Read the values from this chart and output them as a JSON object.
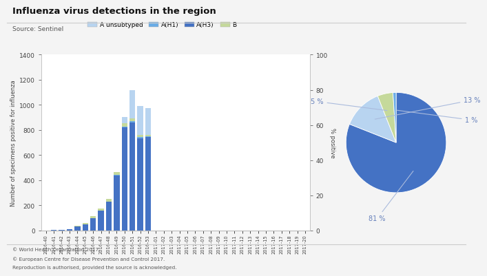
{
  "title": "Influenza virus detections in the region",
  "source": "Source: Sentinel",
  "weeks": [
    "2016-40",
    "2016-41",
    "2016-42",
    "2016-43",
    "2016-44",
    "2016-45",
    "2016-46",
    "2016-47",
    "2016-48",
    "2016-49",
    "2016-50",
    "2016-51",
    "2016-52",
    "2016-53",
    "2017-01",
    "2017-02",
    "2017-03",
    "2017-04",
    "2017-05",
    "2017-06",
    "2017-07",
    "2017-08",
    "2017-09",
    "2017-10",
    "2017-11",
    "2017-12",
    "2017-13",
    "2017-14",
    "2017-15",
    "2017-16",
    "2017-17",
    "2017-18",
    "2017-19",
    "2017-20"
  ],
  "A_unsubtyped": [
    0,
    0,
    0,
    0,
    0,
    0,
    0,
    0,
    0,
    0,
    50,
    225,
    230,
    215,
    0,
    0,
    0,
    0,
    0,
    0,
    0,
    0,
    0,
    0,
    0,
    0,
    0,
    0,
    0,
    0,
    0,
    0,
    0,
    0
  ],
  "A_H1": [
    0,
    0,
    0,
    0,
    0,
    0,
    0,
    0,
    0,
    5,
    5,
    10,
    10,
    5,
    0,
    0,
    0,
    0,
    0,
    0,
    0,
    0,
    0,
    0,
    0,
    0,
    0,
    0,
    0,
    0,
    0,
    0,
    0,
    0
  ],
  "A_H3": [
    0,
    2,
    5,
    8,
    30,
    50,
    100,
    155,
    230,
    440,
    820,
    860,
    735,
    745,
    0,
    0,
    0,
    0,
    0,
    0,
    0,
    0,
    0,
    0,
    0,
    0,
    0,
    0,
    0,
    0,
    0,
    0,
    0,
    0
  ],
  "B": [
    0,
    0,
    0,
    0,
    5,
    10,
    15,
    20,
    20,
    20,
    30,
    25,
    15,
    10,
    0,
    0,
    0,
    0,
    0,
    0,
    0,
    0,
    0,
    0,
    0,
    0,
    0,
    0,
    0,
    0,
    0,
    0,
    0,
    0
  ],
  "color_A_unsubtyped": "#b8d4f0",
  "color_A_H1": "#6aace6",
  "color_A_H3": "#4472c4",
  "color_B": "#c5d99b",
  "ylim_left": [
    0,
    1400
  ],
  "ylim_right": [
    0,
    100
  ],
  "ylabel_left": "Number of specimens positive for influenza",
  "ylabel_right": "% positive",
  "pie_values": [
    81,
    13,
    5,
    1
  ],
  "pie_labels": [
    "81 %",
    "13 %",
    "5 %",
    "1 %"
  ],
  "pie_colors": [
    "#4472c4",
    "#b8d4f0",
    "#c5d99b",
    "#6aace6"
  ],
  "legend_labels": [
    "A unsubtyped",
    "A(H1)",
    "A(H3)",
    "B"
  ],
  "legend_colors": [
    "#b8d4f0",
    "#6aace6",
    "#4472c4",
    "#c5d99b"
  ],
  "footer_line1": "© World Health Organization 2017.",
  "footer_line2": "© European Centre for Disease Prevention and Control 2017.",
  "footer_line3": "Reproduction is authorised, provided the source is acknowledged.",
  "bg_color": "#f4f4f4",
  "plot_bg_color": "#ffffff"
}
